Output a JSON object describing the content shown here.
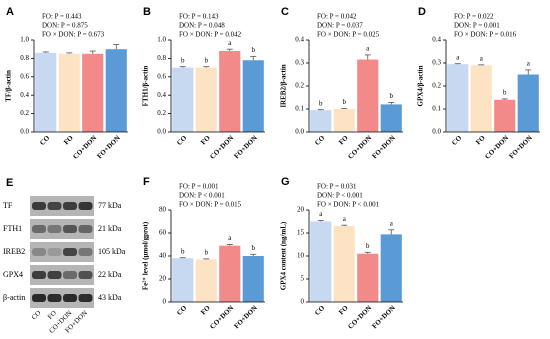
{
  "chart_data": [
    {
      "type": "bar",
      "panel": "A",
      "ylabel": "TF/β-actin",
      "annotations": [
        "FO: P = 0.443",
        "DON: P = 0.875",
        "FO × DON: P = 0.673"
      ],
      "categories": [
        "CO",
        "FO",
        "CO+DON",
        "FO+DON"
      ],
      "values": [
        0.86,
        0.85,
        0.85,
        0.9
      ],
      "errors": [
        0.01,
        0.01,
        0.03,
        0.05
      ],
      "colors": [
        "#c6d9f1",
        "#fde2c4",
        "#f28a8a",
        "#5b9bd5"
      ],
      "ylim": [
        0,
        1
      ],
      "yticks": [
        {
          "value": 0,
          "label": "0.0"
        },
        0.2,
        0.4,
        0.6,
        0.8,
        {
          "value": 1,
          "label": "1.0"
        }
      ]
    },
    {
      "type": "bar",
      "panel": "B",
      "ylabel": "FTH1/β-actin",
      "annotations": [
        "FO: P = 0.143",
        "DON: P = 0.048",
        "FO × DON: P = 0.042"
      ],
      "categories": [
        "CO",
        "FO",
        "CO+DON",
        "FO+DON"
      ],
      "values": [
        0.7,
        0.7,
        0.88,
        0.78
      ],
      "errors": [
        0.01,
        0.01,
        0.02,
        0.04
      ],
      "letters": [
        "b",
        "b",
        "a",
        "b"
      ],
      "colors": [
        "#c6d9f1",
        "#fde2c4",
        "#f28a8a",
        "#5b9bd5"
      ],
      "ylim": [
        0,
        1
      ],
      "yticks": [
        {
          "value": 0,
          "label": "0.0"
        },
        0.2,
        0.4,
        0.6,
        0.8,
        {
          "value": 1,
          "label": "1.0"
        }
      ]
    },
    {
      "type": "bar",
      "panel": "C",
      "ylabel": "IREB2/β-actin",
      "annotations": [
        "FO: P = 0.042",
        "DON: P = 0.037",
        "FO × DON: P = 0.025"
      ],
      "categories": [
        "CO",
        "FO",
        "CO+DON",
        "FO+DON"
      ],
      "values": [
        0.095,
        0.1,
        0.315,
        0.12
      ],
      "errors": [
        0.002,
        0.002,
        0.02,
        0.008
      ],
      "letters": [
        "b",
        "b",
        "a",
        "b"
      ],
      "colors": [
        "#c6d9f1",
        "#fde2c4",
        "#f28a8a",
        "#5b9bd5"
      ],
      "ylim": [
        0,
        0.4
      ],
      "yticks": [
        {
          "value": 0,
          "label": "0.0"
        },
        0.1,
        0.2,
        0.3,
        0.4
      ]
    },
    {
      "type": "bar",
      "panel": "D",
      "ylabel": "GPX4/β-actin",
      "annotations": [
        "FO: P = 0.022",
        "DON: P = 0.001",
        "FO × DON: P = 0.016"
      ],
      "categories": [
        "CO",
        "FO",
        "CO+DON",
        "FO+DON"
      ],
      "values": [
        0.295,
        0.29,
        0.14,
        0.25
      ],
      "errors": [
        0.002,
        0.002,
        0.004,
        0.02
      ],
      "letters": [
        "a",
        "a",
        "b",
        "a"
      ],
      "colors": [
        "#c6d9f1",
        "#fde2c4",
        "#f28a8a",
        "#5b9bd5"
      ],
      "ylim": [
        0,
        0.4
      ],
      "yticks": [
        {
          "value": 0,
          "label": "0.0"
        },
        0.1,
        0.2,
        0.3,
        0.4
      ]
    },
    {
      "type": "bar",
      "panel": "F",
      "ylabel": "Fe²⁺ level (μmol/gprot)",
      "annotations": [
        "FO: P = 0.001",
        "DON: P < 0.001",
        "FO × DON: P = 0.015"
      ],
      "categories": [
        "CO",
        "FO",
        "CO+DON",
        "FO+DON"
      ],
      "values": [
        38,
        37,
        49,
        40
      ],
      "errors": [
        0.5,
        0.5,
        1,
        1.5
      ],
      "letters": [
        "b",
        "b",
        "a",
        "b"
      ],
      "colors": [
        "#c6d9f1",
        "#fde2c4",
        "#f28a8a",
        "#5b9bd5"
      ],
      "ylim": [
        0,
        80
      ],
      "yticks": [
        0,
        20,
        40,
        60,
        80
      ]
    },
    {
      "type": "bar",
      "panel": "G",
      "ylabel": "GPX4 content (ng/mL)",
      "annotations": [
        "FO: P = 0.031",
        "DON: P < 0.001",
        "FO × DON: P < 0.001"
      ],
      "categories": [
        "CO",
        "FO",
        "CO+DON",
        "FO+DON"
      ],
      "values": [
        17.5,
        16.5,
        10.5,
        14.7
      ],
      "errors": [
        0.2,
        0.2,
        0.3,
        1
      ],
      "letters": [
        "a",
        "a",
        "b",
        "a"
      ],
      "colors": [
        "#c6d9f1",
        "#fde2c4",
        "#f28a8a",
        "#5b9bd5"
      ],
      "ylim": [
        0,
        20
      ],
      "yticks": [
        0,
        5,
        10,
        15,
        20
      ]
    }
  ],
  "blot": {
    "panel": "E",
    "bands": [
      {
        "name": "TF",
        "size": "77 kDa"
      },
      {
        "name": "FTH1",
        "size": "21 kDa"
      },
      {
        "name": "IREB2",
        "size": "105 kDa"
      },
      {
        "name": "GPX4",
        "size": "22 kDa"
      },
      {
        "name": "β-actin",
        "size": "43 kDa"
      }
    ],
    "lanes": [
      "CO",
      "FO",
      "CO+DON",
      "FO+DON"
    ]
  }
}
